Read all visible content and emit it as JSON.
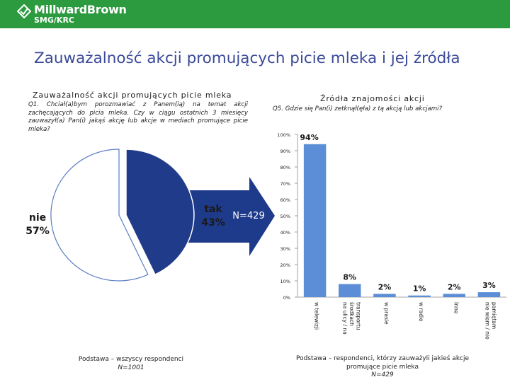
{
  "header": {
    "logo_name": "MillwardBrown",
    "logo_sub": "SMG/KRC",
    "accent": "#2c9a3e"
  },
  "slide": {
    "title": "Zauważalność akcji promujących picie mleka i jej źródła"
  },
  "left_panel": {
    "title": "Zauważalność akcji promujących picie mleka",
    "question": "Q1. Chciał(a)bym porozmawiać z Panem(ią) na temat akcji zachęcających do picia mleka. Czy w ciągu ostatnich 3 miesięcy zauważył(a) Pan(i) jakąś akcję lub akcje w mediach promujące picie mleka?",
    "base_line1": "Podstawa – wszyscy respondenci",
    "base_line2": "N=1001"
  },
  "right_panel": {
    "title": "Źródła znajomości akcji",
    "question": "Q5. Gdzie się Pan(i) zetknął(ęła) z tą akcją lub akcjami?",
    "base_line1": "Podstawa – respondenci, którzy zauważyli jakieś akcje",
    "base_line2": "promujące picie mleka",
    "base_line3": "N=429"
  },
  "arrow": {
    "label": "N=429",
    "color": "#1e3a8a"
  },
  "chart_data": [
    {
      "type": "pie",
      "slices": [
        {
          "label_line1": "tak",
          "label_line2": "43%",
          "value": 43,
          "color": "#1f3b8a"
        },
        {
          "label_line1": "nie",
          "label_line2": "57%",
          "value": 57,
          "color": "#ffffff"
        }
      ]
    },
    {
      "type": "bar",
      "categories": [
        [
          "w telewizji"
        ],
        [
          "na ulicy / na",
          "środkach",
          "transportu"
        ],
        [
          "w prasie"
        ],
        [
          "w radio"
        ],
        [
          "Inne"
        ],
        [
          "nie wiem / nie",
          "pamiętam"
        ]
      ],
      "values": [
        94,
        8,
        2,
        1,
        2,
        3
      ],
      "data_labels": [
        "94%",
        "8%",
        "2%",
        "1%",
        "2%",
        "3%"
      ],
      "yticks": [
        "0%",
        "10%",
        "20%",
        "30%",
        "40%",
        "50%",
        "60%",
        "70%",
        "80%",
        "90%",
        "100%"
      ],
      "ylim": [
        0,
        100
      ],
      "bar_color": "#5b8ed6",
      "grid": false
    }
  ]
}
